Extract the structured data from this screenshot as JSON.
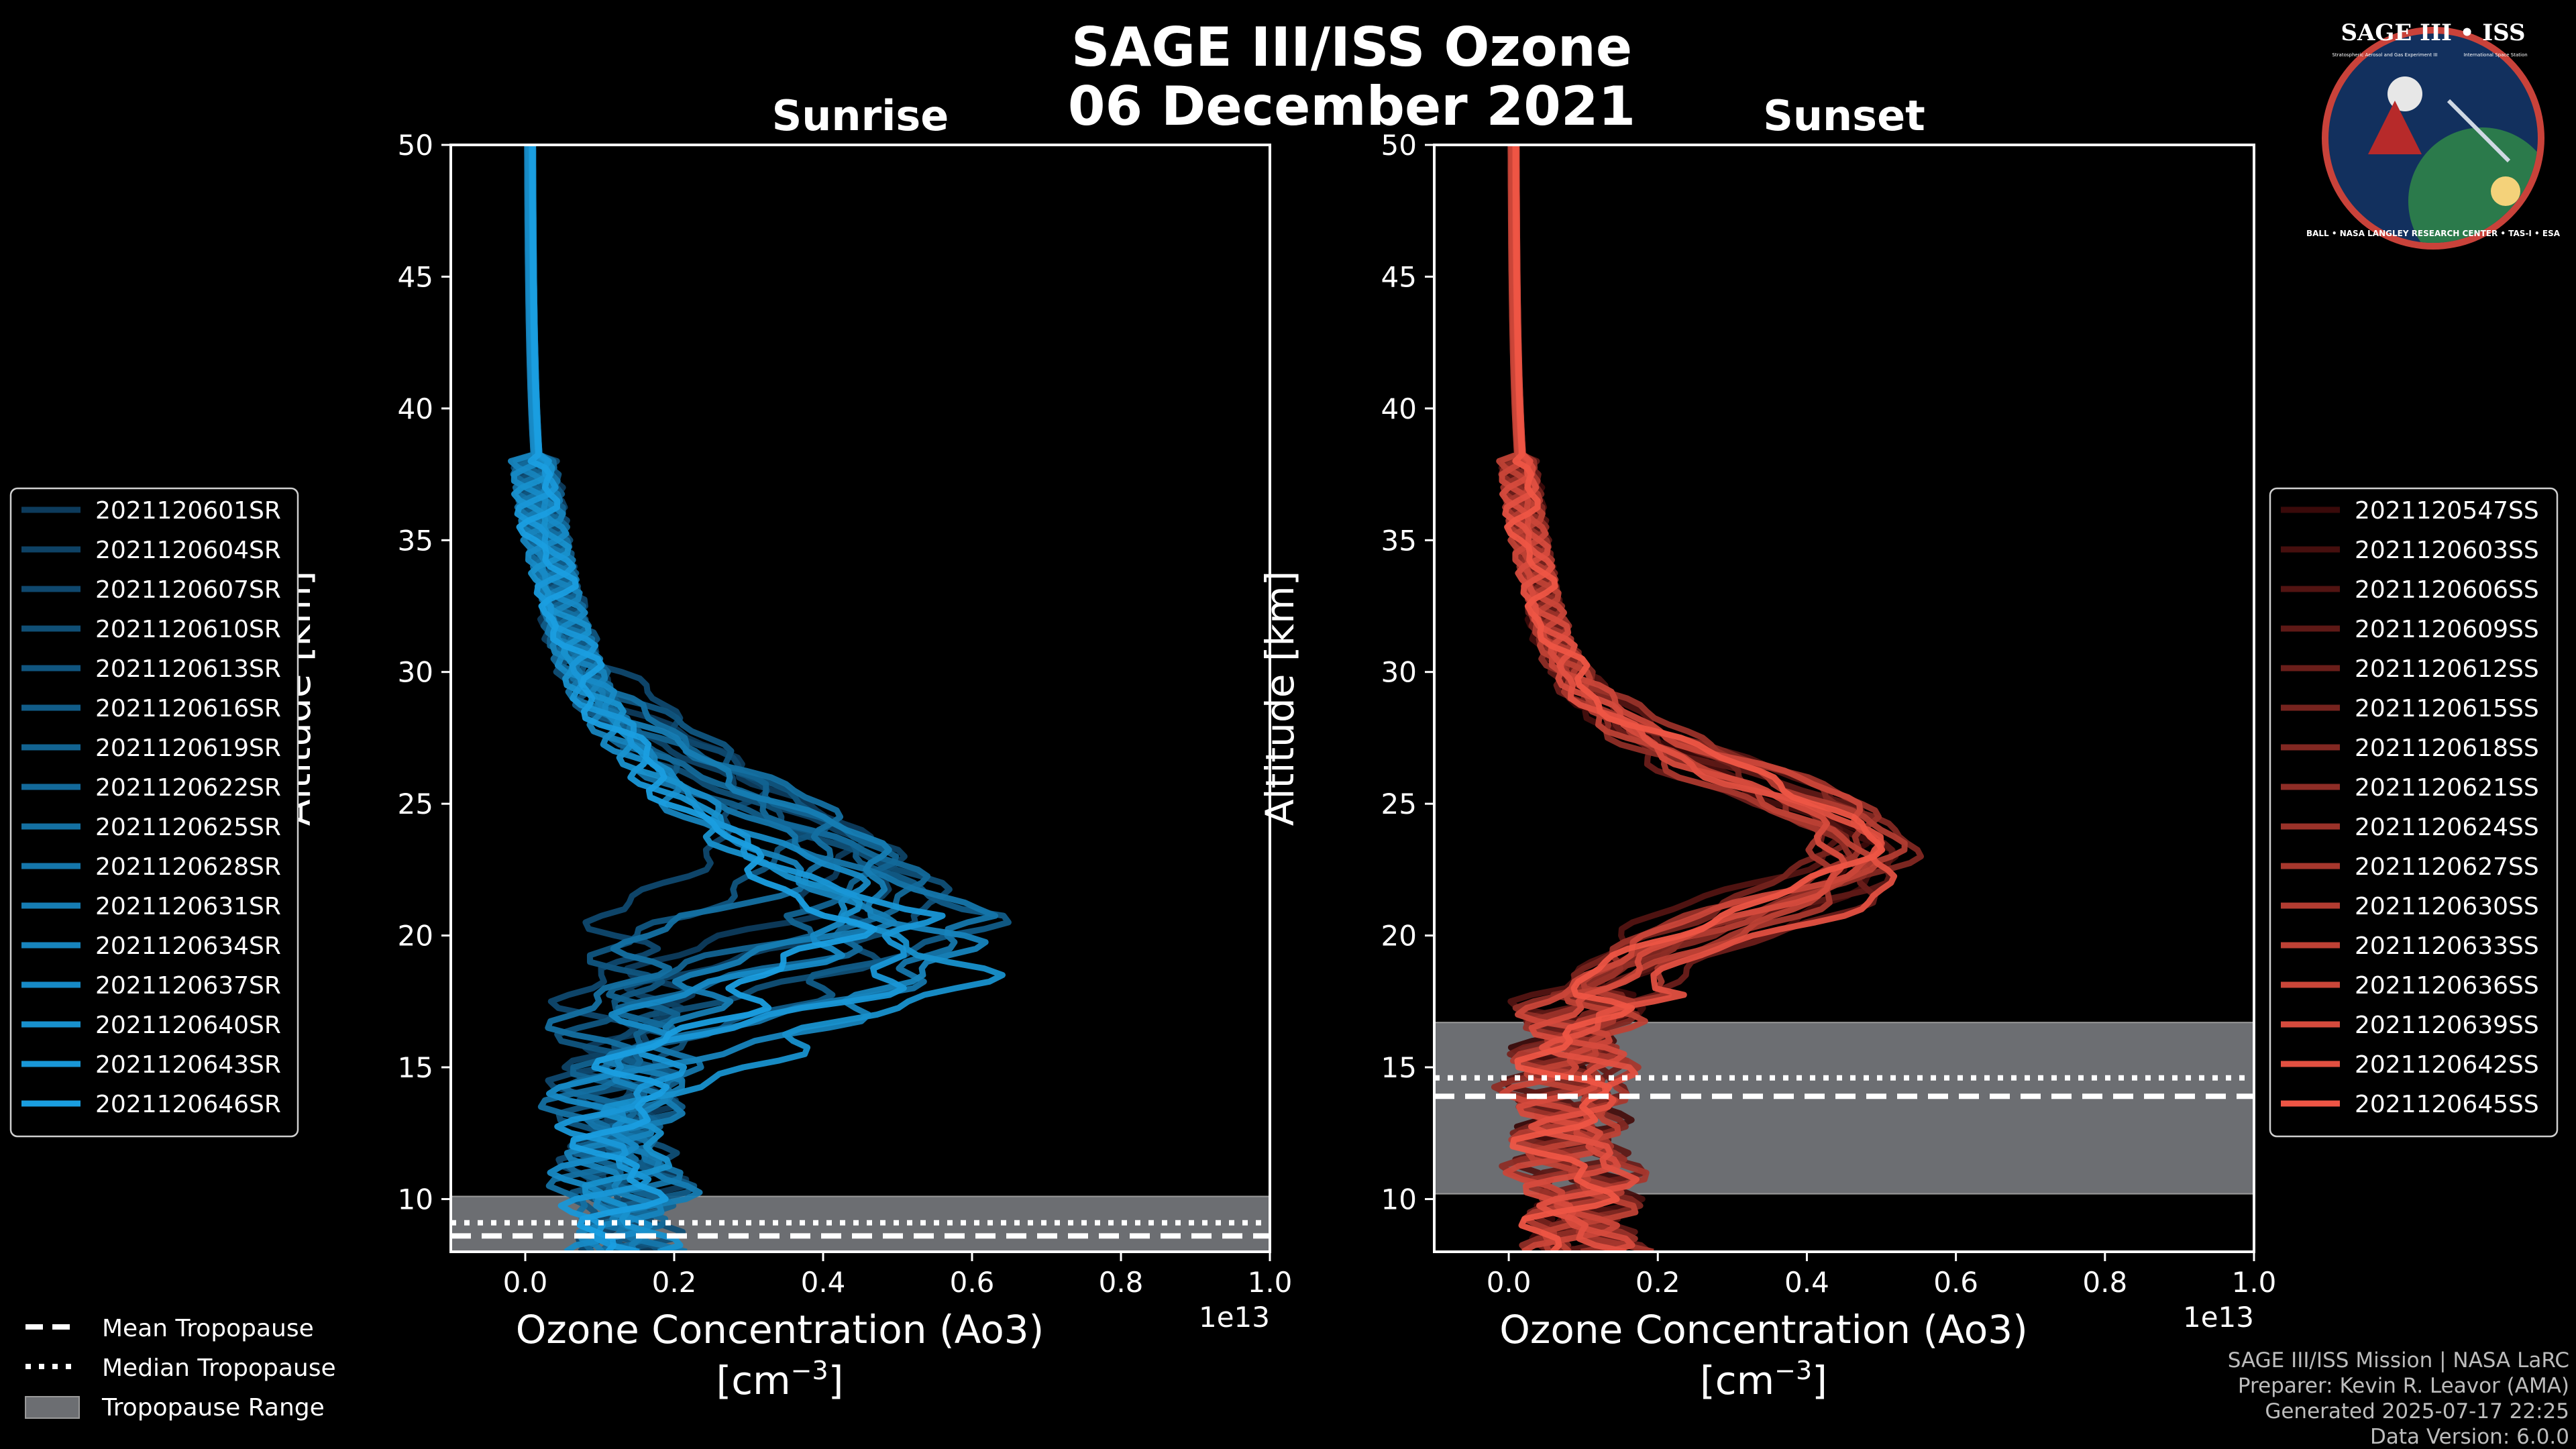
{
  "figure": {
    "title_line1": "SAGE III/ISS Ozone",
    "title_line2": "06 December 2021",
    "credits": [
      "SAGE III/ISS Mission | NASA LaRC",
      "Preparer: Kevin R. Leavor (AMA)",
      "Generated 2025-07-17 22:25",
      "Data Version: 6.0.0"
    ],
    "logo": {
      "text_top": "SAGE III • ISS",
      "text_small_left": "Stratospheric Aerosol and Gas Experiment III",
      "text_small_right": "International Space Station",
      "text_ring": "BALL • NASA LANGLEY RESEARCH CENTER • TAS-I • ESA"
    }
  },
  "bottom_legend": [
    {
      "label": "Mean Tropopause",
      "style": "dashed"
    },
    {
      "label": "Median Tropopause",
      "style": "dotted"
    },
    {
      "label": "Tropopause Range",
      "style": "patch"
    }
  ],
  "colors": {
    "sunrise_dark": "#0d3b5c",
    "sunrise_light": "#1a9ee0",
    "sunset_dark": "#3a0a0a",
    "sunset_light": "#ee5545",
    "tropopause_patch": "#6c6e72",
    "frame": "#ffffff"
  },
  "chart_data": [
    {
      "type": "line",
      "title": "Sunrise",
      "xlabel": "Ozone Concentration (Ao3)",
      "xunit_base": "[cm",
      "xunit_exp": "−3",
      "xunit_close": "]",
      "ylabel": "Altitude [km]",
      "offset_text": "1e13",
      "xlim": [
        -0.1,
        1.0
      ],
      "ylim": [
        8,
        50
      ],
      "xticks": [
        "0.0",
        "0.2",
        "0.4",
        "0.6",
        "0.8",
        "1.0"
      ],
      "xtick_values": [
        0.0,
        0.2,
        0.4,
        0.6,
        0.8,
        1.0
      ],
      "yticks": [
        "10",
        "15",
        "20",
        "25",
        "30",
        "35",
        "40",
        "45",
        "50"
      ],
      "ytick_values": [
        10,
        15,
        20,
        25,
        30,
        35,
        40,
        45,
        50
      ],
      "tropopause": {
        "mean": 8.6,
        "median": 9.1,
        "range": [
          8,
          10.1
        ]
      },
      "series": [
        {
          "name": "2021120601SR",
          "peak_x": 0.44,
          "peak_alt": 23.0,
          "low_x": 0.15,
          "var": 0.0
        },
        {
          "name": "2021120604SR",
          "peak_x": 0.5,
          "peak_alt": 22.0,
          "low_x": 0.12,
          "var": 1.0
        },
        {
          "name": "2021120607SR",
          "peak_x": 0.3,
          "peak_alt": 25.0,
          "low_x": 0.1,
          "var": 2.0
        },
        {
          "name": "2021120610SR",
          "peak_x": 0.55,
          "peak_alt": 21.0,
          "low_x": 0.14,
          "var": 3.0
        },
        {
          "name": "2021120613SR",
          "peak_x": 0.38,
          "peak_alt": 24.0,
          "low_x": 0.11,
          "var": 4.0
        },
        {
          "name": "2021120616SR",
          "peak_x": 0.58,
          "peak_alt": 20.5,
          "low_x": 0.16,
          "var": 5.0
        },
        {
          "name": "2021120619SR",
          "peak_x": 0.47,
          "peak_alt": 22.5,
          "low_x": 0.13,
          "var": 6.0
        },
        {
          "name": "2021120622SR",
          "peak_x": 0.52,
          "peak_alt": 21.5,
          "low_x": 0.12,
          "var": 7.0
        },
        {
          "name": "2021120625SR",
          "peak_x": 0.42,
          "peak_alt": 23.5,
          "low_x": 0.09,
          "var": 8.0
        },
        {
          "name": "2021120628SR",
          "peak_x": 0.6,
          "peak_alt": 20.0,
          "low_x": 0.15,
          "var": 9.0
        },
        {
          "name": "2021120631SR",
          "peak_x": 0.49,
          "peak_alt": 22.0,
          "low_x": 0.17,
          "var": 10.0
        },
        {
          "name": "2021120634SR",
          "peak_x": 0.56,
          "peak_alt": 19.0,
          "low_x": 0.12,
          "var": 11.0
        },
        {
          "name": "2021120637SR",
          "peak_x": 0.45,
          "peak_alt": 21.0,
          "low_x": 0.1,
          "var": 12.0
        },
        {
          "name": "2021120640SR",
          "peak_x": 0.57,
          "peak_alt": 18.5,
          "low_x": 0.14,
          "var": 13.0
        },
        {
          "name": "2021120643SR",
          "peak_x": 0.53,
          "peak_alt": 19.5,
          "low_x": 0.11,
          "var": 14.0
        },
        {
          "name": "2021120646SR",
          "peak_x": 0.4,
          "peak_alt": 20.0,
          "low_x": 0.13,
          "var": 15.0
        }
      ]
    },
    {
      "type": "line",
      "title": "Sunset",
      "xlabel": "Ozone Concentration (Ao3)",
      "xunit_base": "[cm",
      "xunit_exp": "−3",
      "xunit_close": "]",
      "ylabel": "Altitude [km]",
      "offset_text": "1e13",
      "xlim": [
        -0.1,
        1.0
      ],
      "ylim": [
        8,
        50
      ],
      "xticks": [
        "0.0",
        "0.2",
        "0.4",
        "0.6",
        "0.8",
        "1.0"
      ],
      "xtick_values": [
        0.0,
        0.2,
        0.4,
        0.6,
        0.8,
        1.0
      ],
      "yticks": [
        "10",
        "15",
        "20",
        "25",
        "30",
        "35",
        "40",
        "45",
        "50"
      ],
      "ytick_values": [
        10,
        15,
        20,
        25,
        30,
        35,
        40,
        45,
        50
      ],
      "tropopause": {
        "mean": 13.9,
        "median": 14.6,
        "range": [
          10.2,
          16.7
        ]
      },
      "series": [
        {
          "name": "2021120547SS",
          "peak_x": 0.47,
          "peak_alt": 23.0,
          "low_x": 0.08,
          "var": 0.0
        },
        {
          "name": "2021120603SS",
          "peak_x": 0.5,
          "peak_alt": 22.5,
          "low_x": 0.1,
          "var": 1.0
        },
        {
          "name": "2021120606SS",
          "peak_x": 0.45,
          "peak_alt": 24.0,
          "low_x": 0.07,
          "var": 2.0
        },
        {
          "name": "2021120609SS",
          "peak_x": 0.52,
          "peak_alt": 23.0,
          "low_x": 0.09,
          "var": 3.0
        },
        {
          "name": "2021120612SS",
          "peak_x": 0.48,
          "peak_alt": 22.0,
          "low_x": 0.11,
          "var": 4.0
        },
        {
          "name": "2021120615SS",
          "peak_x": 0.43,
          "peak_alt": 23.5,
          "low_x": 0.08,
          "var": 5.0
        },
        {
          "name": "2021120618SS",
          "peak_x": 0.53,
          "peak_alt": 23.3,
          "low_x": 0.1,
          "var": 6.0
        },
        {
          "name": "2021120621SS",
          "peak_x": 0.46,
          "peak_alt": 22.8,
          "low_x": 0.06,
          "var": 7.0
        },
        {
          "name": "2021120624SS",
          "peak_x": 0.49,
          "peak_alt": 23.8,
          "low_x": 0.09,
          "var": 8.0
        },
        {
          "name": "2021120627SS",
          "peak_x": 0.44,
          "peak_alt": 22.3,
          "low_x": 0.12,
          "var": 9.0
        },
        {
          "name": "2021120630SS",
          "peak_x": 0.51,
          "peak_alt": 23.2,
          "low_x": 0.08,
          "var": 10.0
        },
        {
          "name": "2021120633SS",
          "peak_x": 0.47,
          "peak_alt": 22.6,
          "low_x": 0.1,
          "var": 11.0
        },
        {
          "name": "2021120636SS",
          "peak_x": 0.5,
          "peak_alt": 23.6,
          "low_x": 0.07,
          "var": 12.0
        },
        {
          "name": "2021120639SS",
          "peak_x": 0.45,
          "peak_alt": 22.9,
          "low_x": 0.09,
          "var": 13.0
        },
        {
          "name": "2021120642SS",
          "peak_x": 0.52,
          "peak_alt": 22.4,
          "low_x": 0.11,
          "var": 14.0
        },
        {
          "name": "2021120645SS",
          "peak_x": 0.48,
          "peak_alt": 23.4,
          "low_x": 0.08,
          "var": 15.0
        }
      ]
    }
  ]
}
